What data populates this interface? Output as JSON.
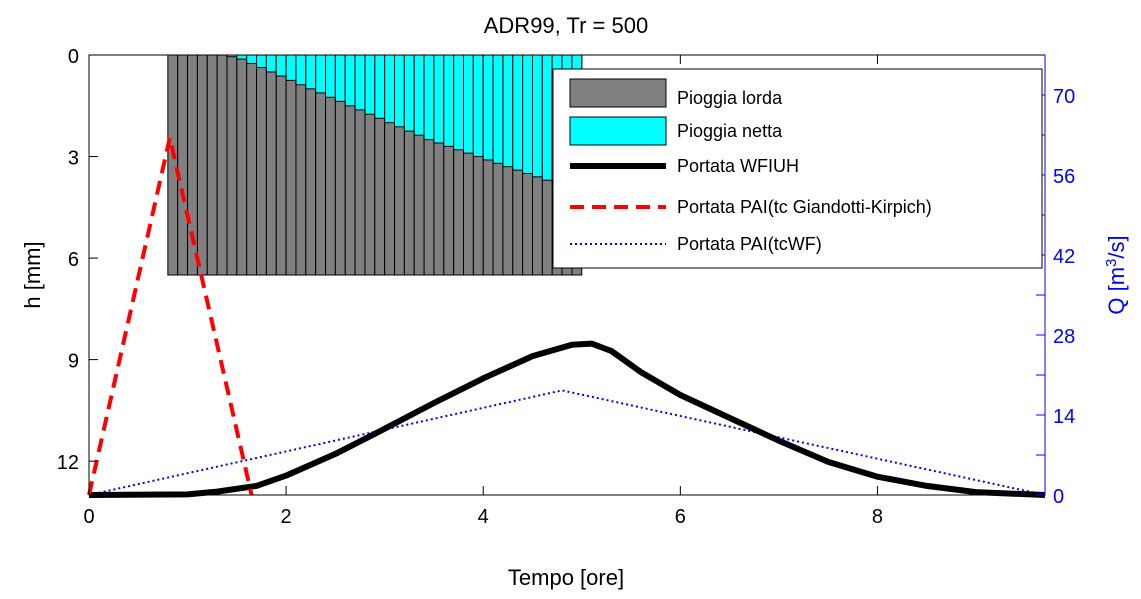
{
  "chart_data": {
    "type": "bar+line",
    "title": "ADR99, Tr = 500",
    "xlabel": "Tempo [ore]",
    "ylabel_left": "h [mm]",
    "ylabel_right": "Q [m3/s]",
    "ylabel_right_text": "Q [m",
    "ylabel_right_sup": "3",
    "ylabel_right_tail": "/s]",
    "xlim": [
      0,
      9.7
    ],
    "ylim_left": [
      0,
      13
    ],
    "ylim_left_reversed": true,
    "ylim_right": [
      0,
      77
    ],
    "xticks": [
      "0",
      "2",
      "4",
      "6",
      "8"
    ],
    "xtick_values": [
      0,
      2,
      4,
      6,
      8
    ],
    "yticks_left": [
      "0",
      "3",
      "6",
      "9",
      "12"
    ],
    "ytick_values_left": [
      0,
      3,
      6,
      9,
      12
    ],
    "yticks_right": [
      "0",
      "14",
      "28",
      "42",
      "56",
      "70"
    ],
    "ytick_values_right": [
      0,
      14,
      28,
      42,
      56,
      70
    ],
    "colors": {
      "gross": "#808080",
      "net": "#00ffff",
      "wfiuh": "#000000",
      "pai_gk": "#ff0000",
      "pai_tcwf": "#0000ff",
      "right_axis": "#0000ff"
    },
    "legend": {
      "placement": "top-right",
      "entries": [
        {
          "key": "gross",
          "label": "Pioggia lorda",
          "style": "bar"
        },
        {
          "key": "net",
          "label": "Pioggia netta",
          "style": "bar"
        },
        {
          "key": "wfiuh",
          "label": "Portata WFIUH",
          "style": "solid"
        },
        {
          "key": "pai_gk",
          "label": "Portata PAI(tc Giandotti-Kirpich)",
          "style": "dashed"
        },
        {
          "key": "pai_tcwf",
          "label": "Portata PAI(tcWF)",
          "style": "dotted"
        }
      ]
    },
    "rain": {
      "bar_start": 0.8,
      "bar_width": 0.1,
      "gross_mm": 6.5,
      "net_mm": [
        0,
        0,
        0,
        0,
        0,
        0,
        0.05,
        0.12,
        0.25,
        0.37,
        0.5,
        0.62,
        0.75,
        0.88,
        1.0,
        1.12,
        1.25,
        1.37,
        1.5,
        1.62,
        1.75,
        1.87,
        2.0,
        2.12,
        2.25,
        2.37,
        2.5,
        2.6,
        2.7,
        2.8,
        2.9,
        3.0,
        3.1,
        3.2,
        3.3,
        3.4,
        3.5,
        3.6,
        3.7,
        3.8,
        3.9,
        4.0
      ],
      "visible_net_cutoff": 31
    },
    "series": [
      {
        "key": "wfiuh",
        "name": "Portata WFIUH",
        "x": [
          0,
          1.0,
          1.3,
          1.7,
          2.0,
          2.5,
          3.0,
          3.5,
          4.0,
          4.5,
          4.9,
          5.1,
          5.3,
          5.6,
          6.0,
          6.5,
          7.0,
          7.5,
          8.0,
          8.5,
          9.0,
          9.7
        ],
        "y": [
          0,
          0.1,
          0.6,
          1.6,
          3.4,
          7.2,
          11.6,
          16.1,
          20.4,
          24.3,
          26.3,
          26.5,
          25.2,
          21.5,
          17.5,
          13.5,
          9.5,
          5.8,
          3.2,
          1.6,
          0.5,
          0
        ]
      },
      {
        "key": "pai_gk",
        "name": "Portata PAI(tc Giandotti-Kirpich)",
        "x": [
          0,
          0.82,
          1.65
        ],
        "y": [
          0,
          62.5,
          0
        ]
      },
      {
        "key": "pai_tcwf",
        "name": "Portata PAI(tcWF)",
        "x": [
          0,
          4.8,
          9.7
        ],
        "y": [
          0,
          18.3,
          0
        ]
      }
    ]
  }
}
